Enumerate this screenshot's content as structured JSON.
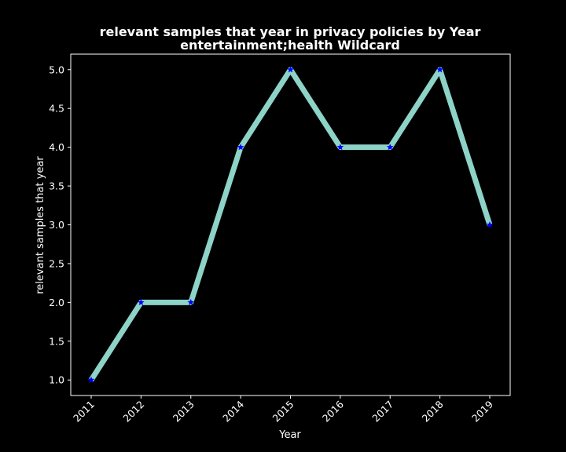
{
  "chart_data": {
    "type": "line",
    "title_line1": "relevant samples that year in privacy policies by Year",
    "title_line2": "entertainment;health Wildcard",
    "xlabel": "Year",
    "ylabel": "relevant samples that year",
    "categories": [
      "2011",
      "2012",
      "2013",
      "2014",
      "2015",
      "2016",
      "2017",
      "2018",
      "2019"
    ],
    "values": [
      1,
      2,
      2,
      4,
      5,
      4,
      4,
      5,
      3
    ],
    "ylim": [
      0.8,
      5.2
    ],
    "yticks": [
      "1.0",
      "1.5",
      "2.0",
      "2.5",
      "3.0",
      "3.5",
      "4.0",
      "4.5",
      "5.0"
    ],
    "grid": false,
    "colors": {
      "line": "#8dd3c7",
      "marker": "#0000ff",
      "background": "#000000",
      "axes": "#ffffff"
    }
  }
}
